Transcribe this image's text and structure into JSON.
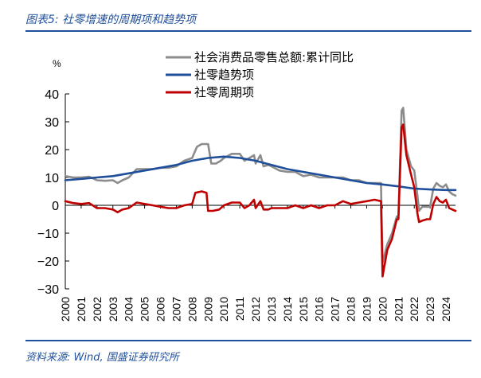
{
  "figure_title": "图表5: 社零增速的周期项和趋势项",
  "source": "资料来源: Wind, 国盛证券研究所",
  "chart_data": {
    "type": "line",
    "ylabel": "%",
    "ylim": [
      -30,
      40
    ],
    "yticks": [
      -30,
      -20,
      -10,
      0,
      10,
      20,
      30,
      40
    ],
    "xlim": [
      2000,
      2024.6
    ],
    "xticks": [
      "2000",
      "2001",
      "2002",
      "2003",
      "2004",
      "2005",
      "2006",
      "2007",
      "2008",
      "2009",
      "2010",
      "2011",
      "2012",
      "2013",
      "2014",
      "2015",
      "2016",
      "2017",
      "2018",
      "2019",
      "2020",
      "2021",
      "2022",
      "2023",
      "2024"
    ],
    "legend_position": "top-right",
    "series": [
      {
        "name": "社会消费品零售总额:累计同比",
        "color": "#8c8c8c",
        "points": [
          [
            2000.0,
            10.5
          ],
          [
            2000.5,
            10.0
          ],
          [
            2001.0,
            10.0
          ],
          [
            2001.5,
            10.3
          ],
          [
            2002.0,
            9.0
          ],
          [
            2002.5,
            8.8
          ],
          [
            2003.0,
            9.0
          ],
          [
            2003.3,
            8.0
          ],
          [
            2003.6,
            9.0
          ],
          [
            2004.0,
            10.0
          ],
          [
            2004.5,
            13.0
          ],
          [
            2005.0,
            13.0
          ],
          [
            2005.5,
            13.0
          ],
          [
            2006.0,
            13.5
          ],
          [
            2006.5,
            13.5
          ],
          [
            2007.0,
            14.0
          ],
          [
            2007.5,
            16.0
          ],
          [
            2008.0,
            17.0
          ],
          [
            2008.3,
            21.0
          ],
          [
            2008.6,
            22.0
          ],
          [
            2009.0,
            22.0
          ],
          [
            2009.2,
            15.0
          ],
          [
            2009.5,
            15.0
          ],
          [
            2009.8,
            16.0
          ],
          [
            2010.0,
            17.0
          ],
          [
            2010.5,
            18.5
          ],
          [
            2011.0,
            18.5
          ],
          [
            2011.3,
            16.0
          ],
          [
            2011.6,
            17.0
          ],
          [
            2011.9,
            18.0
          ],
          [
            2012.0,
            15.0
          ],
          [
            2012.3,
            18.0
          ],
          [
            2012.5,
            14.0
          ],
          [
            2012.8,
            14.5
          ],
          [
            2013.0,
            14.0
          ],
          [
            2013.5,
            12.5
          ],
          [
            2014.0,
            12.0
          ],
          [
            2014.5,
            12.0
          ],
          [
            2015.0,
            10.5
          ],
          [
            2015.5,
            11.0
          ],
          [
            2016.0,
            10.0
          ],
          [
            2016.5,
            10.0
          ],
          [
            2017.0,
            10.0
          ],
          [
            2017.5,
            10.0
          ],
          [
            2018.0,
            9.0
          ],
          [
            2018.5,
            9.0
          ],
          [
            2019.0,
            8.0
          ],
          [
            2019.5,
            8.0
          ],
          [
            2019.9,
            8.0
          ],
          [
            2020.0,
            -20.5
          ],
          [
            2020.3,
            -14.0
          ],
          [
            2020.6,
            -10.0
          ],
          [
            2020.9,
            -4.0
          ],
          [
            2021.0,
            -4.0
          ],
          [
            2021.2,
            34.0
          ],
          [
            2021.3,
            35.0
          ],
          [
            2021.5,
            20.0
          ],
          [
            2021.8,
            14.0
          ],
          [
            2022.0,
            12.5
          ],
          [
            2022.2,
            3.5
          ],
          [
            2022.3,
            -2.0
          ],
          [
            2022.5,
            -0.5
          ],
          [
            2022.8,
            -0.5
          ],
          [
            2023.0,
            -0.5
          ],
          [
            2023.2,
            6.0
          ],
          [
            2023.4,
            8.0
          ],
          [
            2023.6,
            7.0
          ],
          [
            2023.8,
            6.5
          ],
          [
            2024.0,
            7.5
          ],
          [
            2024.2,
            5.0
          ],
          [
            2024.4,
            4.0
          ],
          [
            2024.6,
            3.5
          ]
        ]
      },
      {
        "name": "社零趋势项",
        "color": "#1f4e9a",
        "points": [
          [
            2000.0,
            9.0
          ],
          [
            2001.0,
            9.5
          ],
          [
            2002.0,
            10.0
          ],
          [
            2003.0,
            10.5
          ],
          [
            2004.0,
            11.5
          ],
          [
            2005.0,
            12.5
          ],
          [
            2006.0,
            13.5
          ],
          [
            2007.0,
            14.5
          ],
          [
            2008.0,
            16.0
          ],
          [
            2009.0,
            17.0
          ],
          [
            2010.0,
            17.5
          ],
          [
            2011.0,
            17.0
          ],
          [
            2012.0,
            16.0
          ],
          [
            2013.0,
            14.5
          ],
          [
            2014.0,
            13.0
          ],
          [
            2015.0,
            12.0
          ],
          [
            2016.0,
            11.0
          ],
          [
            2017.0,
            10.0
          ],
          [
            2018.0,
            9.0
          ],
          [
            2019.0,
            8.0
          ],
          [
            2020.0,
            7.5
          ],
          [
            2021.0,
            6.8
          ],
          [
            2022.0,
            6.0
          ],
          [
            2023.0,
            5.7
          ],
          [
            2024.0,
            5.5
          ],
          [
            2024.6,
            5.5
          ]
        ]
      },
      {
        "name": "社零周期项",
        "color": "#c00000",
        "points": [
          [
            2000.0,
            1.5
          ],
          [
            2000.5,
            0.8
          ],
          [
            2001.0,
            0.5
          ],
          [
            2001.5,
            0.8
          ],
          [
            2002.0,
            -1.0
          ],
          [
            2002.5,
            -1.0
          ],
          [
            2003.0,
            -1.5
          ],
          [
            2003.3,
            -2.5
          ],
          [
            2003.6,
            -1.5
          ],
          [
            2004.0,
            -1.0
          ],
          [
            2004.5,
            1.0
          ],
          [
            2005.0,
            0.5
          ],
          [
            2005.5,
            0.0
          ],
          [
            2006.0,
            -0.5
          ],
          [
            2006.5,
            -1.0
          ],
          [
            2007.0,
            -1.0
          ],
          [
            2007.5,
            0.0
          ],
          [
            2008.0,
            0.5
          ],
          [
            2008.2,
            4.5
          ],
          [
            2008.6,
            5.0
          ],
          [
            2008.9,
            4.5
          ],
          [
            2009.0,
            -2.0
          ],
          [
            2009.3,
            -2.0
          ],
          [
            2009.7,
            -1.5
          ],
          [
            2010.0,
            0.0
          ],
          [
            2010.5,
            1.0
          ],
          [
            2011.0,
            1.0
          ],
          [
            2011.3,
            -1.0
          ],
          [
            2011.6,
            0.0
          ],
          [
            2011.9,
            2.0
          ],
          [
            2012.0,
            -1.0
          ],
          [
            2012.3,
            1.5
          ],
          [
            2012.5,
            -1.5
          ],
          [
            2012.8,
            -1.5
          ],
          [
            2013.0,
            -1.0
          ],
          [
            2013.5,
            -1.0
          ],
          [
            2014.0,
            -1.0
          ],
          [
            2014.5,
            0.0
          ],
          [
            2015.0,
            -1.0
          ],
          [
            2015.5,
            0.0
          ],
          [
            2016.0,
            -1.0
          ],
          [
            2016.5,
            0.0
          ],
          [
            2017.0,
            0.0
          ],
          [
            2017.5,
            1.5
          ],
          [
            2018.0,
            0.5
          ],
          [
            2018.5,
            1.0
          ],
          [
            2019.0,
            1.5
          ],
          [
            2019.5,
            2.0
          ],
          [
            2019.9,
            1.5
          ],
          [
            2020.0,
            -25.5
          ],
          [
            2020.3,
            -16.0
          ],
          [
            2020.6,
            -12.0
          ],
          [
            2020.9,
            -5.0
          ],
          [
            2021.0,
            -5.0
          ],
          [
            2021.2,
            28.0
          ],
          [
            2021.3,
            29.0
          ],
          [
            2021.5,
            18.0
          ],
          [
            2021.8,
            11.0
          ],
          [
            2022.0,
            6.5
          ],
          [
            2022.2,
            -3.0
          ],
          [
            2022.3,
            -6.0
          ],
          [
            2022.5,
            -5.5
          ],
          [
            2022.8,
            -5.0
          ],
          [
            2023.0,
            -5.0
          ],
          [
            2023.2,
            0.5
          ],
          [
            2023.4,
            3.0
          ],
          [
            2023.6,
            1.5
          ],
          [
            2023.8,
            1.0
          ],
          [
            2024.0,
            2.0
          ],
          [
            2024.2,
            -1.0
          ],
          [
            2024.4,
            -1.5
          ],
          [
            2024.6,
            -2.0
          ]
        ]
      }
    ]
  }
}
